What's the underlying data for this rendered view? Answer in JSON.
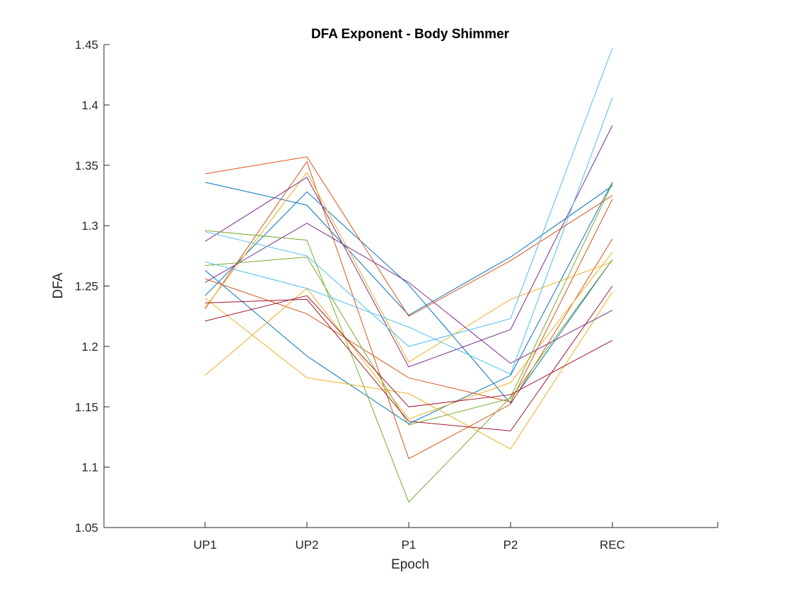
{
  "chart_data": {
    "type": "line",
    "title": "DFA Exponent - Body Shimmer",
    "xlabel": "Epoch",
    "ylabel": "DFA",
    "categories": [
      "UP1",
      "UP2",
      "P1",
      "P2",
      "REC"
    ],
    "ylim": [
      1.05,
      1.45
    ],
    "yticks": [
      "1.05",
      "1.1",
      "1.15",
      "1.2",
      "1.25",
      "1.3",
      "1.35",
      "1.4",
      "1.45"
    ],
    "grid": false,
    "legend": "none",
    "series": [
      {
        "color": "#0072BD",
        "values": [
          1.336,
          1.317,
          1.226,
          1.274,
          1.333
        ]
      },
      {
        "color": "#0072BD",
        "values": [
          1.242,
          1.328,
          1.251,
          1.153,
          1.272
        ]
      },
      {
        "color": "#0072BD",
        "values": [
          1.263,
          1.192,
          1.136,
          1.176,
          1.336
        ]
      },
      {
        "color": "#D95319",
        "values": [
          1.343,
          1.357,
          1.225,
          1.271,
          1.325
        ]
      },
      {
        "color": "#D95319",
        "values": [
          1.231,
          1.353,
          1.107,
          1.152,
          1.289
        ]
      },
      {
        "color": "#D95319",
        "values": [
          1.256,
          1.227,
          1.174,
          1.154,
          1.322
        ]
      },
      {
        "color": "#EDB120",
        "values": [
          1.176,
          1.248,
          1.14,
          1.17,
          1.278
        ]
      },
      {
        "color": "#EDB120",
        "values": [
          1.24,
          1.174,
          1.161,
          1.115,
          1.245
        ]
      },
      {
        "color": "#EDB120",
        "values": [
          1.232,
          1.344,
          1.187,
          1.239,
          1.27
        ]
      },
      {
        "color": "#7E2F8E",
        "values": [
          1.287,
          1.34,
          1.183,
          1.214,
          1.383
        ]
      },
      {
        "color": "#7E2F8E",
        "values": [
          1.253,
          1.302,
          1.253,
          1.186,
          1.23
        ]
      },
      {
        "color": "#77AC30",
        "values": [
          1.296,
          1.288,
          1.071,
          1.158,
          1.335
        ]
      },
      {
        "color": "#77AC30",
        "values": [
          1.267,
          1.274,
          1.135,
          1.157,
          1.272
        ]
      },
      {
        "color": "#4DBEEE",
        "values": [
          1.295,
          1.275,
          1.2,
          1.223,
          1.447
        ]
      },
      {
        "color": "#4DBEEE",
        "values": [
          1.27,
          1.248,
          1.216,
          1.177,
          1.406
        ]
      },
      {
        "color": "#A2142F",
        "values": [
          1.221,
          1.242,
          1.15,
          1.16,
          1.205
        ]
      },
      {
        "color": "#A2142F",
        "values": [
          1.236,
          1.239,
          1.138,
          1.13,
          1.25
        ]
      }
    ]
  }
}
